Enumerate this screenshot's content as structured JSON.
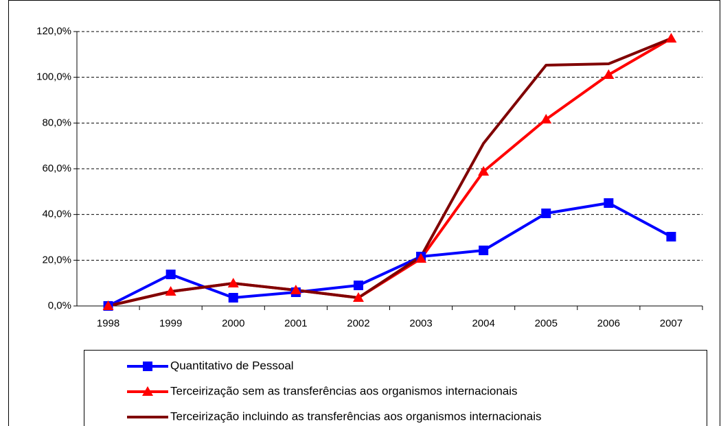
{
  "chart_data": {
    "type": "line",
    "categories": [
      "1998",
      "1999",
      "2000",
      "2001",
      "2002",
      "2003",
      "2004",
      "2005",
      "2006",
      "2007"
    ],
    "series": [
      {
        "name": "Quantitativo de Pessoal",
        "color": "#0000ff",
        "marker": "square",
        "values": [
          0,
          13.8,
          3.6,
          6.0,
          9.0,
          21.6,
          24.3,
          40.5,
          45.0,
          30.3
        ]
      },
      {
        "name": "Terceirização sem as transferências aos organismos internacionais",
        "color": "#ff0000",
        "marker": "triangle",
        "values": [
          0,
          6.3,
          9.9,
          6.9,
          3.6,
          20.7,
          58.8,
          81.6,
          101.1,
          117.0
        ]
      },
      {
        "name": "Terceirização incluindo as transferências aos organismos internacionais",
        "color": "#800000",
        "marker": "none",
        "values": [
          0,
          6.3,
          9.9,
          6.9,
          3.6,
          21.6,
          71.1,
          105.3,
          105.9,
          117.0
        ]
      }
    ],
    "ylim": [
      0,
      120
    ],
    "yticks": [
      {
        "value": 0,
        "label": "0,0%"
      },
      {
        "value": 20,
        "label": "20,0%"
      },
      {
        "value": 40,
        "label": "40,0%"
      },
      {
        "value": 60,
        "label": "60,0%"
      },
      {
        "value": 80,
        "label": "80,0%"
      },
      {
        "value": 100,
        "label": "100,0%"
      },
      {
        "value": 120,
        "label": "120,0%"
      }
    ],
    "grid": true,
    "legend": "bottom"
  }
}
